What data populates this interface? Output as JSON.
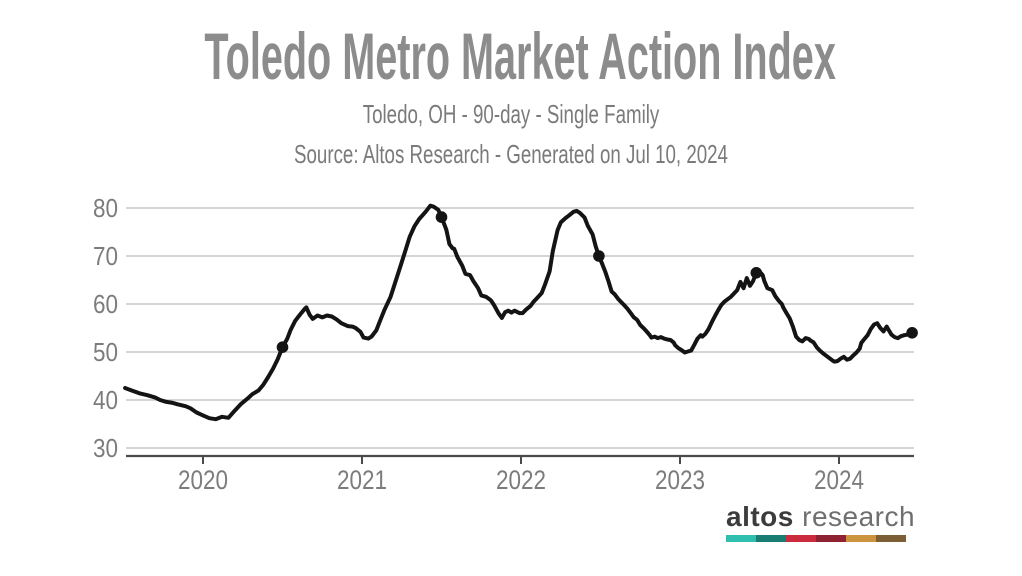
{
  "header": {
    "title": "Toledo Metro Market Action Index",
    "subtitle": "Toledo, OH - 90-day - Single Family",
    "source_line": "Source: Altos Research - Generated on Jul 10, 2024"
  },
  "chart_data": {
    "type": "line",
    "title": "Toledo Metro Market Action Index",
    "xlabel": "",
    "ylabel": "",
    "grid": true,
    "line_color": "#141414",
    "marker_color": "#141414",
    "grid_color": "#c7c7c7",
    "axis_color": "#4a4a4a",
    "tick_label_color": "#7c7c7c",
    "x_axis": {
      "min": 2019.51,
      "max": 2024.47,
      "ticks": [
        2020,
        2021,
        2022,
        2023,
        2024
      ],
      "labels": [
        "2020",
        "2021",
        "2022",
        "2023",
        "2024"
      ]
    },
    "y_axis": {
      "min": 30,
      "max": 80,
      "ticks": [
        30,
        40,
        50,
        60,
        70,
        80
      ],
      "labels": [
        "30",
        "40",
        "50",
        "60",
        "70",
        "80"
      ]
    },
    "markers": [
      [
        2020.5,
        51.0
      ],
      [
        2021.5,
        78.1
      ],
      [
        2022.49,
        70.0
      ],
      [
        2023.48,
        66.5
      ],
      [
        2024.46,
        54.0
      ]
    ],
    "series": [
      {
        "name": "Market Action Index",
        "points": [
          [
            2019.51,
            42.5
          ],
          [
            2019.55,
            42.0
          ],
          [
            2019.6,
            41.4
          ],
          [
            2019.65,
            41.0
          ],
          [
            2019.7,
            40.5
          ],
          [
            2019.73,
            40.0
          ],
          [
            2019.77,
            39.6
          ],
          [
            2019.81,
            39.4
          ],
          [
            2019.84,
            39.1
          ],
          [
            2019.89,
            38.7
          ],
          [
            2019.92,
            38.3
          ],
          [
            2019.96,
            37.4
          ],
          [
            2020.0,
            36.8
          ],
          [
            2020.04,
            36.2
          ],
          [
            2020.08,
            36.0
          ],
          [
            2020.12,
            36.5
          ],
          [
            2020.16,
            36.3
          ],
          [
            2020.2,
            37.8
          ],
          [
            2020.24,
            39.2
          ],
          [
            2020.28,
            40.3
          ],
          [
            2020.31,
            41.2
          ],
          [
            2020.35,
            42.0
          ],
          [
            2020.38,
            43.2
          ],
          [
            2020.41,
            44.8
          ],
          [
            2020.44,
            46.5
          ],
          [
            2020.47,
            48.5
          ],
          [
            2020.5,
            51.0
          ],
          [
            2020.53,
            52.8
          ],
          [
            2020.55,
            54.5
          ],
          [
            2020.58,
            56.5
          ],
          [
            2020.61,
            57.8
          ],
          [
            2020.64,
            59.0
          ],
          [
            2020.65,
            59.3
          ],
          [
            2020.67,
            57.8
          ],
          [
            2020.69,
            56.9
          ],
          [
            2020.72,
            57.6
          ],
          [
            2020.75,
            57.2
          ],
          [
            2020.78,
            57.6
          ],
          [
            2020.81,
            57.4
          ],
          [
            2020.84,
            56.8
          ],
          [
            2020.87,
            56.0
          ],
          [
            2020.91,
            55.4
          ],
          [
            2020.94,
            55.3
          ],
          [
            2020.96,
            55.0
          ],
          [
            2020.99,
            54.2
          ],
          [
            2021.01,
            53.0
          ],
          [
            2021.04,
            52.8
          ],
          [
            2021.06,
            53.2
          ],
          [
            2021.09,
            54.5
          ],
          [
            2021.11,
            56.2
          ],
          [
            2021.14,
            58.7
          ],
          [
            2021.18,
            61.5
          ],
          [
            2021.21,
            64.6
          ],
          [
            2021.24,
            67.7
          ],
          [
            2021.27,
            70.8
          ],
          [
            2021.3,
            74.0
          ],
          [
            2021.33,
            76.2
          ],
          [
            2021.36,
            77.7
          ],
          [
            2021.4,
            79.2
          ],
          [
            2021.43,
            80.5
          ],
          [
            2021.45,
            80.3
          ],
          [
            2021.48,
            79.6
          ],
          [
            2021.5,
            78.1
          ],
          [
            2021.53,
            75.5
          ],
          [
            2021.55,
            72.5
          ],
          [
            2021.57,
            71.6
          ],
          [
            2021.58,
            71.5
          ],
          [
            2021.6,
            69.8
          ],
          [
            2021.63,
            68.0
          ],
          [
            2021.65,
            66.3
          ],
          [
            2021.68,
            66.0
          ],
          [
            2021.7,
            64.8
          ],
          [
            2021.73,
            63.3
          ],
          [
            2021.75,
            61.8
          ],
          [
            2021.78,
            61.5
          ],
          [
            2021.81,
            60.8
          ],
          [
            2021.83,
            59.8
          ],
          [
            2021.86,
            58.0
          ],
          [
            2021.88,
            57.1
          ],
          [
            2021.9,
            58.3
          ],
          [
            2021.92,
            58.6
          ],
          [
            2021.94,
            58.2
          ],
          [
            2021.96,
            58.6
          ],
          [
            2021.99,
            58.1
          ],
          [
            2022.01,
            58.1
          ],
          [
            2022.03,
            58.8
          ],
          [
            2022.06,
            59.6
          ],
          [
            2022.08,
            60.5
          ],
          [
            2022.1,
            61.2
          ],
          [
            2022.13,
            62.3
          ],
          [
            2022.15,
            64.0
          ],
          [
            2022.18,
            66.8
          ],
          [
            2022.2,
            71.0
          ],
          [
            2022.23,
            75.4
          ],
          [
            2022.25,
            77.0
          ],
          [
            2022.28,
            77.9
          ],
          [
            2022.3,
            78.4
          ],
          [
            2022.33,
            79.2
          ],
          [
            2022.35,
            79.4
          ],
          [
            2022.37,
            79.0
          ],
          [
            2022.4,
            78.0
          ],
          [
            2022.42,
            76.3
          ],
          [
            2022.45,
            74.5
          ],
          [
            2022.47,
            72.0
          ],
          [
            2022.49,
            70.0
          ],
          [
            2022.51,
            68.4
          ],
          [
            2022.53,
            66.7
          ],
          [
            2022.55,
            64.8
          ],
          [
            2022.57,
            62.6
          ],
          [
            2022.59,
            62.0
          ],
          [
            2022.61,
            61.1
          ],
          [
            2022.63,
            60.4
          ],
          [
            2022.65,
            59.7
          ],
          [
            2022.67,
            59.0
          ],
          [
            2022.69,
            58.1
          ],
          [
            2022.71,
            57.2
          ],
          [
            2022.73,
            56.7
          ],
          [
            2022.75,
            55.6
          ],
          [
            2022.77,
            55.0
          ],
          [
            2022.79,
            54.3
          ],
          [
            2022.81,
            53.5
          ],
          [
            2022.82,
            53.0
          ],
          [
            2022.84,
            53.2
          ],
          [
            2022.86,
            52.9
          ],
          [
            2022.88,
            53.1
          ],
          [
            2022.9,
            52.8
          ],
          [
            2022.92,
            52.6
          ],
          [
            2022.94,
            52.5
          ],
          [
            2022.96,
            52.0
          ],
          [
            2022.97,
            51.4
          ],
          [
            2022.99,
            50.8
          ],
          [
            2023.01,
            50.4
          ],
          [
            2023.03,
            49.9
          ],
          [
            2023.05,
            50.1
          ],
          [
            2023.07,
            50.3
          ],
          [
            2023.09,
            51.5
          ],
          [
            2023.11,
            52.8
          ],
          [
            2023.13,
            53.5
          ],
          [
            2023.14,
            53.2
          ],
          [
            2023.16,
            53.8
          ],
          [
            2023.18,
            54.8
          ],
          [
            2023.2,
            56.2
          ],
          [
            2023.22,
            57.5
          ],
          [
            2023.24,
            58.7
          ],
          [
            2023.26,
            59.8
          ],
          [
            2023.28,
            60.5
          ],
          [
            2023.3,
            61.0
          ],
          [
            2023.32,
            61.5
          ],
          [
            2023.34,
            62.2
          ],
          [
            2023.36,
            62.9
          ],
          [
            2023.38,
            64.6
          ],
          [
            2023.4,
            63.3
          ],
          [
            2023.42,
            65.4
          ],
          [
            2023.44,
            63.8
          ],
          [
            2023.46,
            64.8
          ],
          [
            2023.48,
            66.5
          ],
          [
            2023.5,
            66.8
          ],
          [
            2023.52,
            66.0
          ],
          [
            2023.53,
            64.8
          ],
          [
            2023.55,
            63.3
          ],
          [
            2023.58,
            62.9
          ],
          [
            2023.6,
            61.6
          ],
          [
            2023.62,
            60.7
          ],
          [
            2023.64,
            60.0
          ],
          [
            2023.65,
            59.2
          ],
          [
            2023.67,
            58.1
          ],
          [
            2023.69,
            57.0
          ],
          [
            2023.71,
            55.3
          ],
          [
            2023.73,
            53.2
          ],
          [
            2023.75,
            52.5
          ],
          [
            2023.77,
            52.2
          ],
          [
            2023.79,
            52.9
          ],
          [
            2023.81,
            52.7
          ],
          [
            2023.82,
            52.4
          ],
          [
            2023.84,
            52.0
          ],
          [
            2023.86,
            51.0
          ],
          [
            2023.88,
            50.3
          ],
          [
            2023.9,
            49.7
          ],
          [
            2023.92,
            49.2
          ],
          [
            2023.94,
            48.7
          ],
          [
            2023.96,
            48.2
          ],
          [
            2023.97,
            48.0
          ],
          [
            2023.99,
            48.1
          ],
          [
            2024.01,
            48.6
          ],
          [
            2024.03,
            49.0
          ],
          [
            2024.05,
            48.4
          ],
          [
            2024.07,
            48.6
          ],
          [
            2024.09,
            49.3
          ],
          [
            2024.11,
            49.9
          ],
          [
            2024.13,
            50.7
          ],
          [
            2024.14,
            51.9
          ],
          [
            2024.16,
            52.7
          ],
          [
            2024.18,
            53.5
          ],
          [
            2024.2,
            54.8
          ],
          [
            2024.22,
            55.7
          ],
          [
            2024.24,
            56.0
          ],
          [
            2024.26,
            55.0
          ],
          [
            2024.28,
            54.3
          ],
          [
            2024.3,
            55.3
          ],
          [
            2024.31,
            54.7
          ],
          [
            2024.33,
            53.6
          ],
          [
            2024.35,
            53.1
          ],
          [
            2024.37,
            52.9
          ],
          [
            2024.39,
            53.3
          ],
          [
            2024.41,
            53.5
          ],
          [
            2024.43,
            53.6
          ],
          [
            2024.45,
            53.9
          ],
          [
            2024.46,
            54.0
          ]
        ]
      }
    ]
  },
  "logo": {
    "brand_bold": "altos",
    "brand_regular": "research",
    "bar_colors": [
      "#2fbfae",
      "#197d74",
      "#cc2b3d",
      "#8f2232",
      "#cd9440",
      "#7d5e35"
    ]
  }
}
